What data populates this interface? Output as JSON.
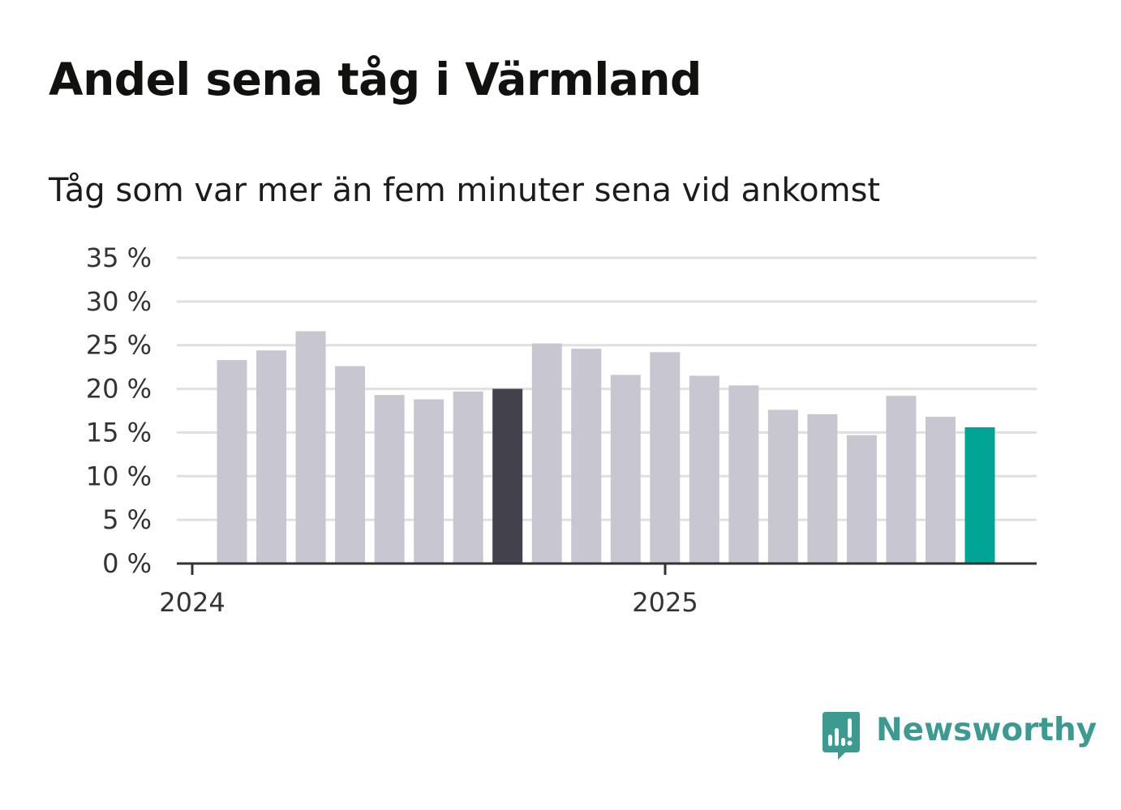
{
  "title": "Andel sena tåg i Värmland",
  "subtitle": "Tåg som var mer än fem minuter sena vid ankomst",
  "brand": {
    "name": "Newsworthy",
    "icon": "newsworthy-logo-icon",
    "color": "#3c9a91"
  },
  "colors": {
    "bar": "#c8c7d1",
    "highlight_dark": "#43414c",
    "highlight_latest": "#00a596",
    "grid": "#e0e0e0",
    "axis": "#333333"
  },
  "chart_data": {
    "type": "bar",
    "title": "Andel sena tåg i Värmland",
    "subtitle": "Tåg som var mer än fem minuter sena vid ankomst",
    "xlabel": "",
    "ylabel": "",
    "x_tick_labels": [
      "2024",
      "2025"
    ],
    "y_tick_labels": [
      "0 %",
      "5 %",
      "10 %",
      "15 %",
      "20 %",
      "25 %",
      "30 %",
      "35 %"
    ],
    "ylim": [
      0,
      35
    ],
    "grid": true,
    "legend": "none",
    "categories": [
      "2024-02",
      "2024-03",
      "2024-04",
      "2024-05",
      "2024-06",
      "2024-07",
      "2024-08",
      "2024-09",
      "2024-10",
      "2024-11",
      "2024-12",
      "2025-01",
      "2025-02",
      "2025-03",
      "2025-04",
      "2025-05",
      "2025-06",
      "2025-07",
      "2025-08",
      "2025-09"
    ],
    "values": [
      23.3,
      24.4,
      26.6,
      22.6,
      19.3,
      18.8,
      19.7,
      20.0,
      25.2,
      24.6,
      21.6,
      24.2,
      21.5,
      20.4,
      17.6,
      17.1,
      14.7,
      19.2,
      16.8,
      15.6
    ],
    "highlight": {
      "2024-09": "#43414c",
      "2025-09": "#00a596"
    }
  }
}
